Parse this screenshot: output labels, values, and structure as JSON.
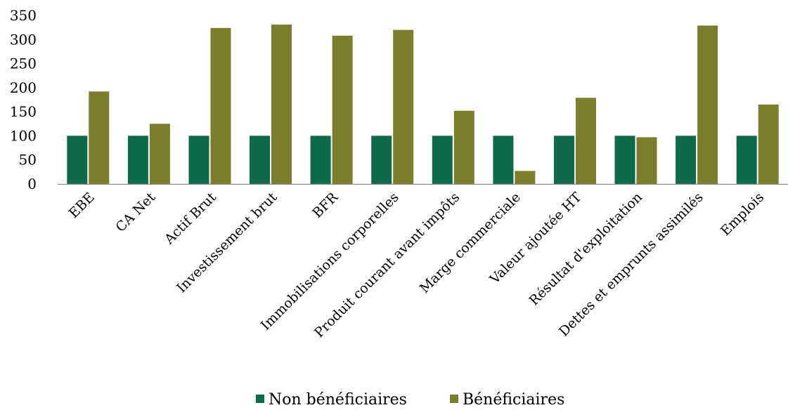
{
  "colors": {
    "non_beneficiaires": "#0d6b4b",
    "beneficiaires": "#7b7f2c"
  },
  "chart_data": {
    "type": "bar",
    "categories": [
      "EBE",
      "CA Net",
      "Actif Brut",
      "Investissement brut",
      "BFR",
      "Immobilisations corporelles",
      "Produit courant avant impôts",
      "Marge commerciale",
      "Valeur ajoutée HT",
      "Résultat d'exploitation",
      "Dettes et emprunts assimilés",
      "Emplois"
    ],
    "series": [
      {
        "name": "Non bénéficiaires",
        "values": [
          100,
          100,
          100,
          100,
          100,
          100,
          100,
          100,
          100,
          100,
          100,
          100
        ]
      },
      {
        "name": "Bénéficiaires",
        "values": [
          192,
          125,
          324,
          331,
          308,
          320,
          152,
          27,
          179,
          97,
          329,
          165
        ]
      }
    ],
    "ylim": [
      0,
      350
    ],
    "yticks": [
      "0",
      "50",
      "100",
      "150",
      "200",
      "250",
      "300",
      "350"
    ],
    "grid": false,
    "legend_position": "bottom",
    "title": "",
    "xlabel": "",
    "ylabel": ""
  }
}
